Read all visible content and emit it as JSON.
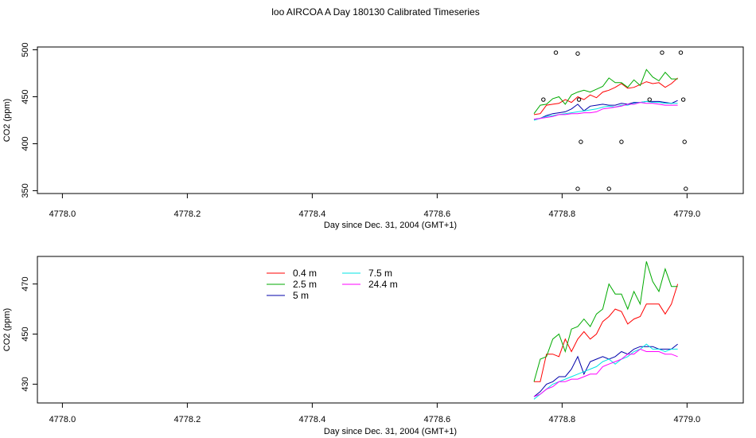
{
  "chart_data": {
    "title": "loo AIRCOA A  Day 180130  Calibrated Timeseries",
    "panels": [
      {
        "type": "line",
        "ylabel": "CO2 (ppm)",
        "xlabel": "Day since Dec. 31, 2004 (GMT+1)",
        "xlim": [
          4777.96,
          4779.09
        ],
        "ylim": [
          347,
          503
        ],
        "x_ticks": [
          "4778.0",
          "4778.2",
          "4778.4",
          "4778.6",
          "4778.8",
          "4779.0"
        ],
        "y_ticks": [
          "350",
          "400",
          "450",
          "500"
        ],
        "series": [
          {
            "name": "0.4 m",
            "color": "#ff0000",
            "x": [
              4778.755,
              4778.765,
              4778.775,
              4778.785,
              4778.795,
              4778.805,
              4778.815,
              4778.825,
              4778.835,
              4778.845,
              4778.855,
              4778.865,
              4778.875,
              4778.885,
              4778.895,
              4778.905,
              4778.915,
              4778.925,
              4778.935,
              4778.945,
              4778.955,
              4778.965,
              4778.975,
              4778.985
            ],
            "y": [
              431,
              432,
              441,
              442,
              443,
              447,
              444,
              450,
              447,
              452,
              449,
              455,
              457,
              460,
              464,
              459,
              460,
              463,
              466,
              464,
              465,
              460,
              464,
              470
            ]
          },
          {
            "name": "2.5 m",
            "color": "#00aa00",
            "x": [
              4778.755,
              4778.765,
              4778.775,
              4778.785,
              4778.795,
              4778.805,
              4778.815,
              4778.825,
              4778.835,
              4778.845,
              4778.855,
              4778.865,
              4778.875,
              4778.885,
              4778.895,
              4778.905,
              4778.915,
              4778.925,
              4778.935,
              4778.945,
              4778.955,
              4778.965,
              4778.975,
              4778.985
            ],
            "y": [
              432,
              441,
              442,
              448,
              450,
              442,
              452,
              455,
              457,
              455,
              458,
              461,
              470,
              465,
              465,
              460,
              468,
              462,
              479,
              471,
              467,
              476,
              469,
              469
            ]
          },
          {
            "name": "5 m",
            "color": "#0000aa",
            "x": [
              4778.755,
              4778.765,
              4778.775,
              4778.785,
              4778.795,
              4778.805,
              4778.815,
              4778.825,
              4778.835,
              4778.845,
              4778.855,
              4778.865,
              4778.875,
              4778.885,
              4778.895,
              4778.905,
              4778.915,
              4778.925,
              4778.935,
              4778.945,
              4778.955,
              4778.965,
              4778.975,
              4778.985
            ],
            "y": [
              426,
              427,
              430,
              432,
              433,
              434,
              437,
              442,
              435,
              440,
              441,
              442,
              441,
              441,
              443,
              442,
              444,
              444,
              445,
              445,
              445,
              444,
              443,
              446
            ]
          },
          {
            "name": "7.5 m",
            "color": "#00e5e5",
            "x": [
              4778.755,
              4778.765,
              4778.775,
              4778.785,
              4778.795,
              4778.805,
              4778.815,
              4778.825,
              4778.835,
              4778.845,
              4778.855,
              4778.865,
              4778.875,
              4778.885,
              4778.895,
              4778.905,
              4778.915,
              4778.925,
              4778.935,
              4778.945,
              4778.955,
              4778.965,
              4778.975,
              4778.985
            ],
            "y": [
              425,
              427,
              429,
              430,
              431,
              432,
              433,
              434,
              435,
              436,
              437,
              439,
              440,
              439,
              441,
              441,
              443,
              444,
              445,
              444,
              444,
              443,
              443,
              443
            ]
          },
          {
            "name": "24.4 m",
            "color": "#ff00ff",
            "x": [
              4778.755,
              4778.765,
              4778.775,
              4778.785,
              4778.795,
              4778.805,
              4778.815,
              4778.825,
              4778.835,
              4778.845,
              4778.855,
              4778.865,
              4778.875,
              4778.885,
              4778.895,
              4778.905,
              4778.915,
              4778.925,
              4778.935,
              4778.945,
              4778.955,
              4778.965,
              4778.975,
              4778.985
            ],
            "y": [
              426,
              427,
              428,
              429,
              431,
              431,
              432,
              432,
              433,
              433,
              434,
              437,
              438,
              439,
              440,
              442,
              442,
              444,
              443,
              443,
              442,
              441,
              441,
              441
            ]
          }
        ],
        "points": {
          "x": [
            4778.77,
            4778.79,
            4778.825,
            4778.827,
            4778.83,
            4778.825,
            4778.875,
            4778.895,
            4778.94,
            4778.96,
            4778.99,
            4778.994,
            4778.996,
            4778.998
          ],
          "y": [
            447,
            497,
            496,
            447,
            402,
            352,
            352,
            402,
            447,
            497,
            497,
            447,
            402,
            352
          ]
        }
      },
      {
        "type": "line",
        "ylabel": "CO2 (ppm)",
        "xlabel": "Day since Dec. 31, 2004 (GMT+1)",
        "xlim": [
          4777.96,
          4779.09
        ],
        "ylim": [
          422.5,
          481
        ],
        "x_ticks": [
          "4778.0",
          "4778.2",
          "4778.4",
          "4778.6",
          "4778.8",
          "4779.0"
        ],
        "y_ticks": [
          "430",
          "450",
          "470"
        ],
        "legend": [
          {
            "label": "0.4 m",
            "color": "#ff0000"
          },
          {
            "label": "2.5 m",
            "color": "#00aa00"
          },
          {
            "label": "5 m",
            "color": "#0000aa"
          },
          {
            "label": "7.5 m",
            "color": "#00e5e5"
          },
          {
            "label": "24.4 m",
            "color": "#ff00ff"
          }
        ],
        "series": [
          {
            "name": "0.4 m",
            "color": "#ff0000",
            "x": [
              4778.755,
              4778.765,
              4778.775,
              4778.785,
              4778.795,
              4778.805,
              4778.815,
              4778.825,
              4778.835,
              4778.845,
              4778.855,
              4778.865,
              4778.875,
              4778.885,
              4778.895,
              4778.905,
              4778.915,
              4778.925,
              4778.935,
              4778.945,
              4778.955,
              4778.965,
              4778.975,
              4778.985
            ],
            "y": [
              431,
              431,
              442,
              442,
              441,
              448,
              443,
              448,
              451,
              448,
              450,
              455,
              457,
              460,
              459,
              454,
              456,
              457,
              462,
              462,
              462,
              458,
              462,
              470
            ]
          },
          {
            "name": "2.5 m",
            "color": "#00aa00",
            "x": [
              4778.755,
              4778.765,
              4778.775,
              4778.785,
              4778.795,
              4778.805,
              4778.815,
              4778.825,
              4778.835,
              4778.845,
              4778.855,
              4778.865,
              4778.875,
              4778.885,
              4778.895,
              4778.905,
              4778.915,
              4778.925,
              4778.935,
              4778.945,
              4778.955,
              4778.965,
              4778.975,
              4778.985
            ],
            "y": [
              431,
              440,
              441,
              448,
              450,
              443,
              452,
              453,
              456,
              453,
              458,
              460,
              470,
              466,
              466,
              460,
              467,
              462,
              479,
              471,
              467,
              476,
              469,
              469
            ]
          },
          {
            "name": "5 m",
            "color": "#0000aa",
            "x": [
              4778.755,
              4778.765,
              4778.775,
              4778.785,
              4778.795,
              4778.805,
              4778.815,
              4778.825,
              4778.835,
              4778.845,
              4778.855,
              4778.865,
              4778.875,
              4778.885,
              4778.895,
              4778.905,
              4778.915,
              4778.925,
              4778.935,
              4778.945,
              4778.955,
              4778.965,
              4778.975,
              4778.985
            ],
            "y": [
              425,
              427,
              430,
              431,
              433,
              433,
              436,
              441,
              434,
              439,
              440,
              441,
              440,
              441,
              443,
              442,
              444,
              445,
              445,
              445,
              444,
              444,
              444,
              446
            ]
          },
          {
            "name": "7.5 m",
            "color": "#00e5e5",
            "x": [
              4778.755,
              4778.765,
              4778.775,
              4778.785,
              4778.795,
              4778.805,
              4778.815,
              4778.825,
              4778.835,
              4778.845,
              4778.855,
              4778.865,
              4778.875,
              4778.885,
              4778.895,
              4778.905,
              4778.915,
              4778.925,
              4778.935,
              4778.945,
              4778.955,
              4778.965,
              4778.975,
              4778.985
            ],
            "y": [
              424,
              426,
              428,
              430,
              431,
              432,
              433,
              434,
              435,
              436,
              437,
              439,
              440,
              438,
              440,
              441,
              443,
              444,
              446,
              444,
              444,
              443,
              444,
              444
            ]
          },
          {
            "name": "24.4 m",
            "color": "#ff00ff",
            "x": [
              4778.755,
              4778.765,
              4778.775,
              4778.785,
              4778.795,
              4778.805,
              4778.815,
              4778.825,
              4778.835,
              4778.845,
              4778.855,
              4778.865,
              4778.875,
              4778.885,
              4778.895,
              4778.905,
              4778.915,
              4778.925,
              4778.935,
              4778.945,
              4778.955,
              4778.965,
              4778.975,
              4778.985
            ],
            "y": [
              425,
              426,
              428,
              429,
              431,
              431,
              432,
              432,
              433,
              434,
              434,
              437,
              438,
              439,
              440,
              442,
              442,
              444,
              443,
              443,
              443,
              442,
              442,
              441
            ]
          }
        ]
      }
    ]
  }
}
